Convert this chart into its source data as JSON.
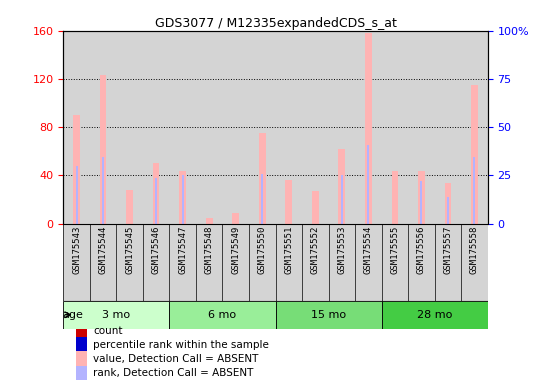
{
  "title": "GDS3077 / M12335expandedCDS_s_at",
  "samples": [
    "GSM175543",
    "GSM175544",
    "GSM175545",
    "GSM175546",
    "GSM175547",
    "GSM175548",
    "GSM175549",
    "GSM175550",
    "GSM175551",
    "GSM175552",
    "GSM175553",
    "GSM175554",
    "GSM175555",
    "GSM175556",
    "GSM175557",
    "GSM175558"
  ],
  "absent_value": [
    90,
    123,
    28,
    50,
    44,
    5,
    9,
    75,
    36,
    27,
    62,
    158,
    44,
    44,
    34,
    115
  ],
  "absent_rank": [
    48,
    55,
    0,
    38,
    40,
    0,
    0,
    41,
    0,
    0,
    40,
    65,
    0,
    35,
    22,
    55
  ],
  "groups": [
    {
      "label": "3 mo",
      "start": 0,
      "end": 3
    },
    {
      "label": "6 mo",
      "start": 4,
      "end": 7
    },
    {
      "label": "15 mo",
      "start": 8,
      "end": 11
    },
    {
      "label": "28 mo",
      "start": 12,
      "end": 15
    }
  ],
  "group_colors": [
    "#ccffcc",
    "#99ee99",
    "#77dd77",
    "#44cc44"
  ],
  "ylim_left": [
    0,
    160
  ],
  "ylim_right": [
    0,
    100
  ],
  "yticks_left": [
    0,
    40,
    80,
    120,
    160
  ],
  "yticks_right": [
    0,
    25,
    50,
    75,
    100
  ],
  "yticklabels_right": [
    "0",
    "25",
    "50",
    "75",
    "100%"
  ],
  "absent_bar_color": "#ffb3b3",
  "absent_rank_color": "#b3b3ff",
  "count_color": "#cc0000",
  "percentile_color": "#0000cc",
  "bg_color": "#ffffff",
  "col_bg_color": "#d4d4d4",
  "legend_items": [
    {
      "label": "count",
      "color": "#cc0000"
    },
    {
      "label": "percentile rank within the sample",
      "color": "#0000cc"
    },
    {
      "label": "value, Detection Call = ABSENT",
      "color": "#ffb3b3"
    },
    {
      "label": "rank, Detection Call = ABSENT",
      "color": "#b3b3ff"
    }
  ]
}
